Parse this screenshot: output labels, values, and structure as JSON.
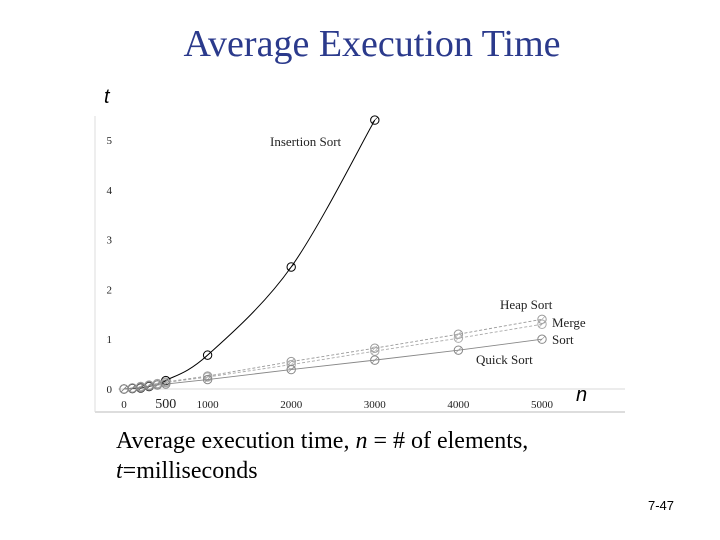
{
  "slide": {
    "title": "Average Execution Time",
    "caption_part1": "Average execution time, ",
    "caption_n": "n",
    "caption_part2": " = # of elements, ",
    "caption_t": "t",
    "caption_part3": "=milliseconds",
    "page_number": "7-47"
  },
  "chart_data": {
    "type": "line",
    "title": "",
    "xlabel": "n",
    "ylabel": "t",
    "xlim": [
      0,
      5000
    ],
    "ylim": [
      0,
      5.5
    ],
    "x_ticks": [
      0,
      500,
      1000,
      2000,
      3000,
      4000,
      5000
    ],
    "x_tick_labels": [
      "0",
      "500",
      "1000",
      "2000",
      "3000",
      "4000",
      "5000"
    ],
    "y_ticks": [
      0,
      1,
      2,
      3,
      4,
      5
    ],
    "y_tick_labels": [
      "0",
      "1",
      "2",
      "3",
      "4",
      "5"
    ],
    "grid": false,
    "series": [
      {
        "name": "Insertion Sort",
        "x": [
          0,
          100,
          200,
          300,
          400,
          500,
          1000,
          2000,
          3000
        ],
        "y": [
          0,
          0.01,
          0.02,
          0.05,
          0.1,
          0.17,
          0.68,
          2.45,
          5.4
        ],
        "color": "#000000"
      },
      {
        "name": "Heap Sort",
        "x": [
          0,
          100,
          200,
          300,
          400,
          500,
          1000,
          2000,
          3000,
          4000,
          5000
        ],
        "y": [
          0,
          0.02,
          0.05,
          0.08,
          0.11,
          0.14,
          0.26,
          0.55,
          0.82,
          1.1,
          1.4
        ],
        "color": "#999999"
      },
      {
        "name": "Merge Sort",
        "x": [
          0,
          100,
          200,
          300,
          400,
          500,
          1000,
          2000,
          3000,
          4000,
          5000
        ],
        "y": [
          0,
          0.02,
          0.04,
          0.07,
          0.1,
          0.13,
          0.24,
          0.49,
          0.76,
          1.02,
          1.3
        ],
        "color": "#aaaaaa"
      },
      {
        "name": "Quick Sort",
        "x": [
          0,
          100,
          200,
          300,
          400,
          500,
          1000,
          2000,
          3000,
          4000,
          5000
        ],
        "y": [
          0,
          0.015,
          0.03,
          0.06,
          0.08,
          0.1,
          0.19,
          0.39,
          0.58,
          0.78,
          1.0
        ],
        "color": "#888888"
      }
    ],
    "series_labels": [
      {
        "text": "Insertion Sort",
        "series": 0
      },
      {
        "text": "Heap Sort",
        "series": 1
      },
      {
        "text": "Merge",
        "series": 2
      },
      {
        "text": "Sort",
        "series": 2
      },
      {
        "text": "Quick Sort",
        "series": 3
      }
    ]
  }
}
